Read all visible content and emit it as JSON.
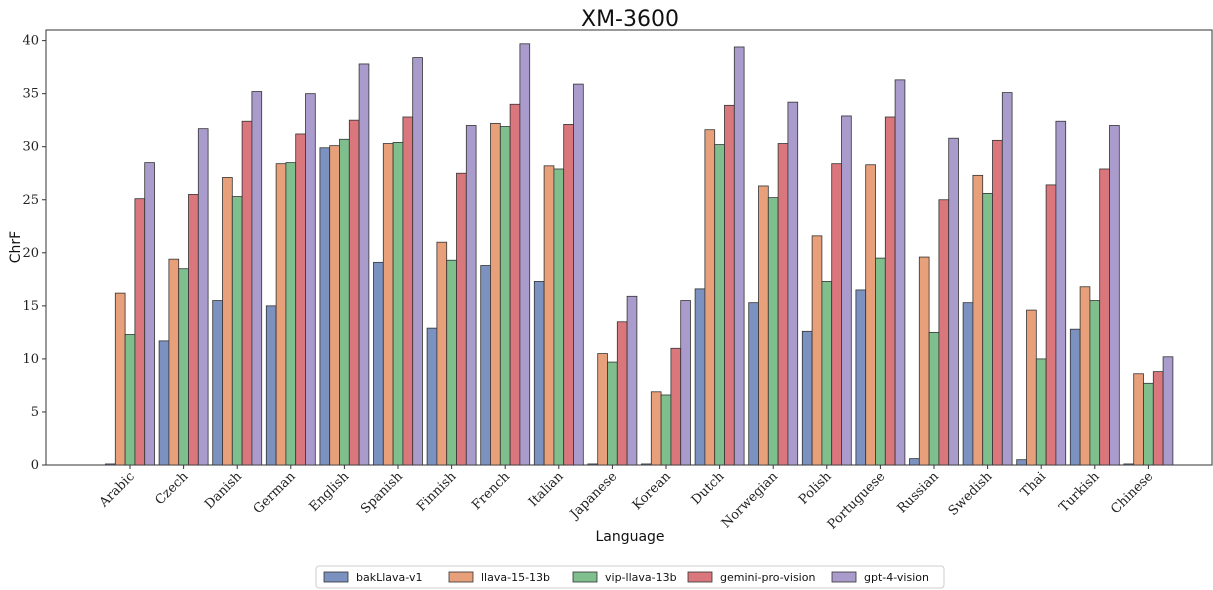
{
  "chart_data": {
    "type": "bar",
    "title": "XM-3600",
    "xlabel": "Language",
    "ylabel": "ChrF",
    "ylim": [
      0,
      41
    ],
    "yticks": [
      0,
      5,
      10,
      15,
      20,
      25,
      30,
      35,
      40
    ],
    "grid": false,
    "legend_position": "bottom-center",
    "categories": [
      "Arabic",
      "Czech",
      "Danish",
      "German",
      "English",
      "Spanish",
      "Finnish",
      "French",
      "Italian",
      "Japanese",
      "Korean",
      "Dutch",
      "Norwegian",
      "Polish",
      "Portuguese",
      "Russian",
      "Swedish",
      "Thai",
      "Turkish",
      "Chinese"
    ],
    "series": [
      {
        "name": "bakLlava-v1",
        "color": "#7b91c0",
        "values": [
          0.1,
          11.7,
          15.5,
          15.0,
          29.9,
          19.1,
          12.9,
          18.8,
          17.3,
          0.1,
          0.1,
          16.6,
          15.3,
          12.6,
          16.5,
          0.6,
          15.3,
          0.5,
          12.8,
          0.1
        ]
      },
      {
        "name": "llava-15-13b",
        "color": "#e8a07a",
        "values": [
          16.2,
          19.4,
          27.1,
          28.4,
          30.1,
          30.3,
          21.0,
          32.2,
          28.2,
          10.5,
          6.9,
          31.6,
          26.3,
          21.6,
          28.3,
          19.6,
          27.3,
          14.6,
          16.8,
          8.6
        ]
      },
      {
        "name": "vip-llava-13b",
        "color": "#7fbf8e",
        "values": [
          12.3,
          18.5,
          25.3,
          28.5,
          30.7,
          30.4,
          19.3,
          31.9,
          27.9,
          9.7,
          6.6,
          30.2,
          25.2,
          17.3,
          19.5,
          12.5,
          25.6,
          10.0,
          15.5,
          7.7
        ]
      },
      {
        "name": "gemini-pro-vision",
        "color": "#d9777d",
        "values": [
          25.1,
          25.5,
          32.4,
          31.2,
          32.5,
          32.8,
          27.5,
          34.0,
          32.1,
          13.5,
          11.0,
          33.9,
          30.3,
          28.4,
          32.8,
          25.0,
          30.6,
          26.4,
          27.9,
          8.8
        ]
      },
      {
        "name": "gpt-4-vision",
        "color": "#a99bcb",
        "values": [
          28.5,
          31.7,
          35.2,
          35.0,
          37.8,
          38.4,
          32.0,
          39.7,
          35.9,
          15.9,
          15.5,
          39.4,
          34.2,
          32.9,
          36.3,
          30.8,
          35.1,
          32.4,
          32.0,
          10.2
        ]
      }
    ]
  }
}
